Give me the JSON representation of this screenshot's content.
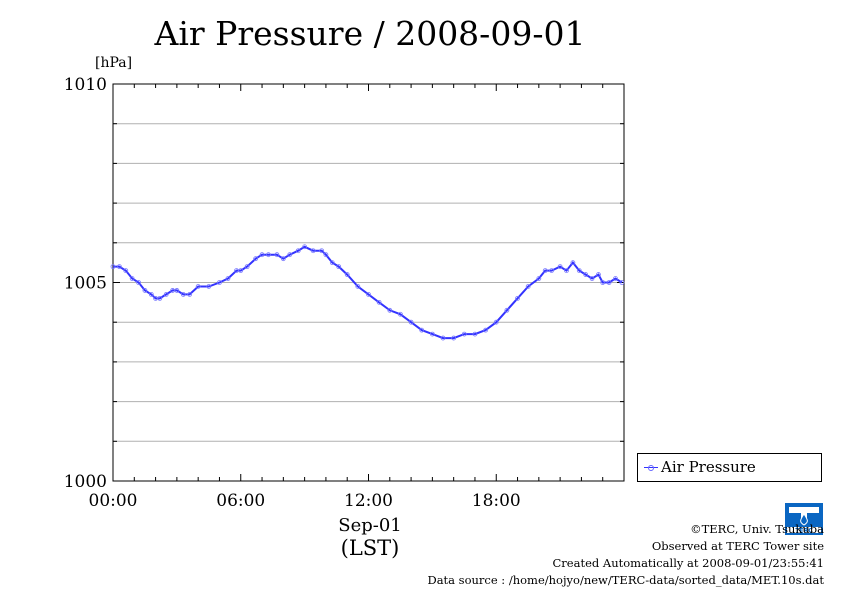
{
  "chart_data": {
    "type": "line",
    "title": "Air Pressure / 2008-09-01",
    "ylabel": "[hPa]",
    "xlabel": "Sep-01",
    "xlabel2": "(LST)",
    "ylim": [
      1000,
      1010
    ],
    "y_ticks": [
      "1000",
      "1005",
      "1010"
    ],
    "xlim_hours": [
      0,
      24
    ],
    "x_ticks": [
      {
        "hour": 0,
        "label": "00:00"
      },
      {
        "hour": 6,
        "label": "06:00"
      },
      {
        "hour": 12,
        "label": "12:00"
      },
      {
        "hour": 18,
        "label": "18:00"
      }
    ],
    "grid": true,
    "legend_position": "bottom-right outside",
    "series": [
      {
        "name": "Air Pressure",
        "color": "#3333ff",
        "x": [
          0,
          0.3,
          0.6,
          0.9,
          1.2,
          1.5,
          1.8,
          2.0,
          2.2,
          2.5,
          2.8,
          3.0,
          3.3,
          3.6,
          4.0,
          4.5,
          5.0,
          5.4,
          5.8,
          6.0,
          6.3,
          6.7,
          7.0,
          7.3,
          7.7,
          8.0,
          8.3,
          8.7,
          9.0,
          9.4,
          9.8,
          10.0,
          10.3,
          10.6,
          11.0,
          11.5,
          12.0,
          12.5,
          13.0,
          13.5,
          14.0,
          14.5,
          15.0,
          15.5,
          16.0,
          16.5,
          17.0,
          17.5,
          18.0,
          18.5,
          19.0,
          19.5,
          20.0,
          20.3,
          20.6,
          21.0,
          21.3,
          21.6,
          21.9,
          22.2,
          22.5,
          22.8,
          23.0,
          23.3,
          23.6,
          23.9
        ],
        "y": [
          1005.4,
          1005.4,
          1005.3,
          1005.1,
          1005.0,
          1004.8,
          1004.7,
          1004.6,
          1004.6,
          1004.7,
          1004.8,
          1004.8,
          1004.7,
          1004.7,
          1004.9,
          1004.9,
          1005.0,
          1005.1,
          1005.3,
          1005.3,
          1005.4,
          1005.6,
          1005.7,
          1005.7,
          1005.7,
          1005.6,
          1005.7,
          1005.8,
          1005.9,
          1005.8,
          1005.8,
          1005.7,
          1005.5,
          1005.4,
          1005.2,
          1004.9,
          1004.7,
          1004.5,
          1004.3,
          1004.2,
          1004.0,
          1003.8,
          1003.7,
          1003.6,
          1003.6,
          1003.7,
          1003.7,
          1003.8,
          1004.0,
          1004.3,
          1004.6,
          1004.9,
          1005.1,
          1005.3,
          1005.3,
          1005.4,
          1005.3,
          1005.5,
          1005.3,
          1005.2,
          1005.1,
          1005.2,
          1005.0,
          1005.0,
          1005.1,
          1005.0
        ]
      }
    ]
  },
  "credits": {
    "line1": "©TERC, Univ. Tsukuba",
    "line2": "Observed at TERC Tower site",
    "line3": "Created Automatically at 2008-09-01/23:55:41",
    "line4": "Data source : /home/hojyo/new/TERC-data/sorted_data/MET.10s.dat"
  },
  "logo": {
    "text": "TERC",
    "color": "#0a66c2"
  }
}
